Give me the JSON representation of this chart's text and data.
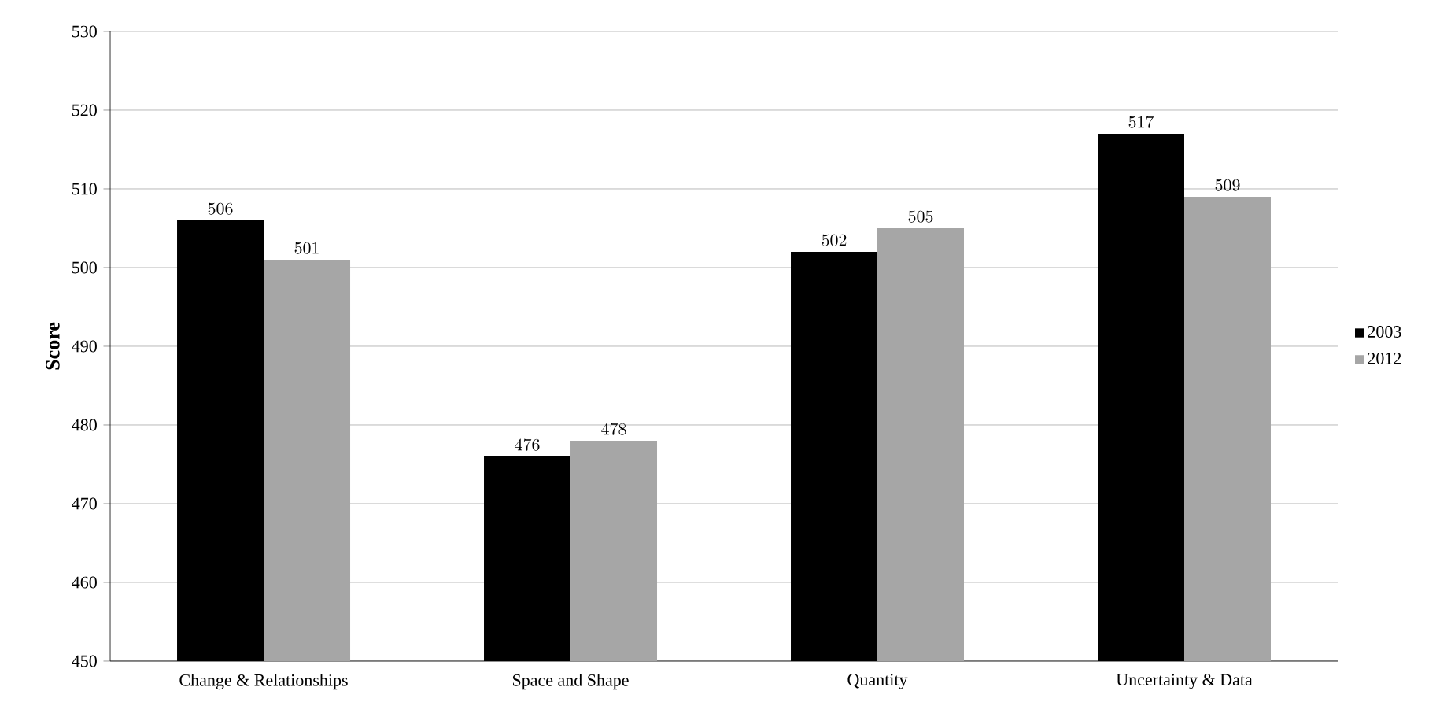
{
  "chart_data": {
    "type": "bar",
    "ylabel": "Score",
    "categories": [
      "Change & Relationships",
      "Space and Shape",
      "Quantity",
      "Uncertainty & Data"
    ],
    "series": [
      {
        "name": "2003",
        "color": "#000000",
        "values": [
          506,
          476,
          502,
          517
        ]
      },
      {
        "name": "2012",
        "color": "#a6a6a6",
        "values": [
          501,
          478,
          505,
          509
        ]
      }
    ],
    "ylim": [
      450,
      530
    ],
    "yticks": [
      450,
      460,
      470,
      480,
      490,
      500,
      510,
      520,
      530
    ],
    "grid": "y",
    "legend": "right",
    "data_labels": true
  }
}
